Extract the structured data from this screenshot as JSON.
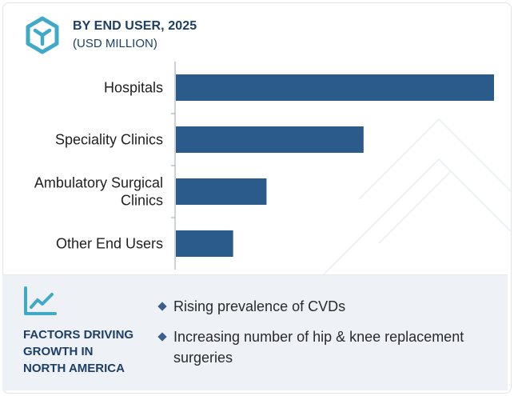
{
  "header": {
    "title": "BY END USER, 2025",
    "subtitle": "(USD MILLION)",
    "logo_icon": "hexagon-y-logo-icon"
  },
  "colors": {
    "bar": "#2b5b8a",
    "heading": "#1d3f66",
    "footer_bg": "#eef1f6",
    "logo": "#3fa9c7"
  },
  "chart_data": {
    "type": "bar",
    "orientation": "horizontal",
    "categories": [
      [
        "Hospitals"
      ],
      [
        "Speciality Clinics"
      ],
      [
        "Ambulatory Surgical",
        "Clinics"
      ],
      [
        "Other End Users"
      ]
    ],
    "values": [
      100,
      59,
      28.5,
      18
    ],
    "title": "BY END USER, 2025",
    "subtitle": "(USD MILLION)",
    "xlabel": "",
    "ylabel": "",
    "xlim": [
      0,
      100
    ],
    "grid": false,
    "value_labels": false
  },
  "footer": {
    "icon": "line-chart-trend-icon",
    "heading_lines": [
      "FACTORS DRIVING",
      "GROWTH IN",
      "NORTH AMERICA"
    ],
    "factors": [
      "Rising prevalence of CVDs",
      "Increasing number of hip & knee replacement surgeries"
    ]
  }
}
